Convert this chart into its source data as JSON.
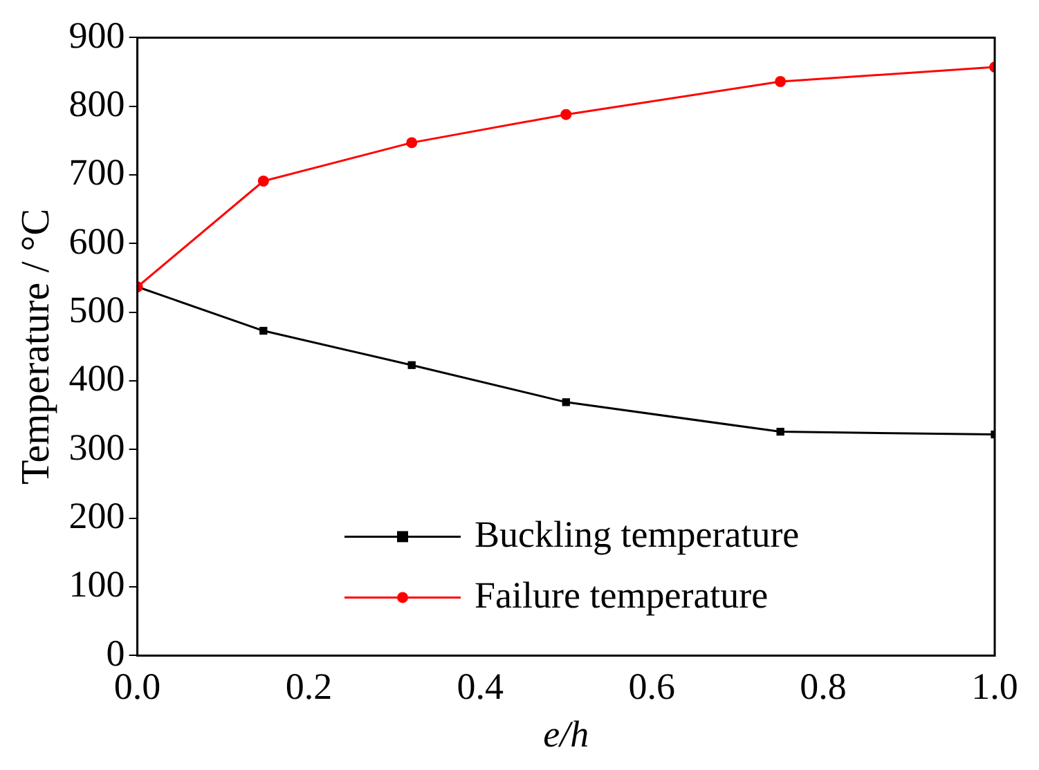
{
  "chart_data": {
    "type": "line",
    "xlabel": "e/h",
    "ylabel": "Temperature / °C",
    "xlim": [
      0,
      1
    ],
    "xticks": [
      {
        "value": 0,
        "label": "0.0"
      },
      0.2,
      0.4,
      0.6,
      0.8,
      {
        "value": 1,
        "label": "1.0"
      }
    ],
    "ylim": [
      0,
      900
    ],
    "yticks": [
      0,
      100,
      200,
      300,
      400,
      500,
      600,
      700,
      800,
      900
    ],
    "grid": false,
    "legend": "bottom right",
    "line_style": "solid",
    "series": [
      {
        "name": "Buckling temperature",
        "color": "#000000",
        "marker": "square",
        "x": [
          0,
          0.147,
          0.32,
          0.5,
          0.75,
          1.0
        ],
        "values": [
          537,
          473,
          423,
          369,
          326,
          322
        ]
      },
      {
        "name": "Failure temperature",
        "color": "#ff0000",
        "marker": "circle",
        "x": [
          0,
          0.147,
          0.32,
          0.5,
          0.75,
          1.0
        ],
        "values": [
          537,
          691,
          747,
          788,
          836,
          857
        ]
      }
    ]
  }
}
